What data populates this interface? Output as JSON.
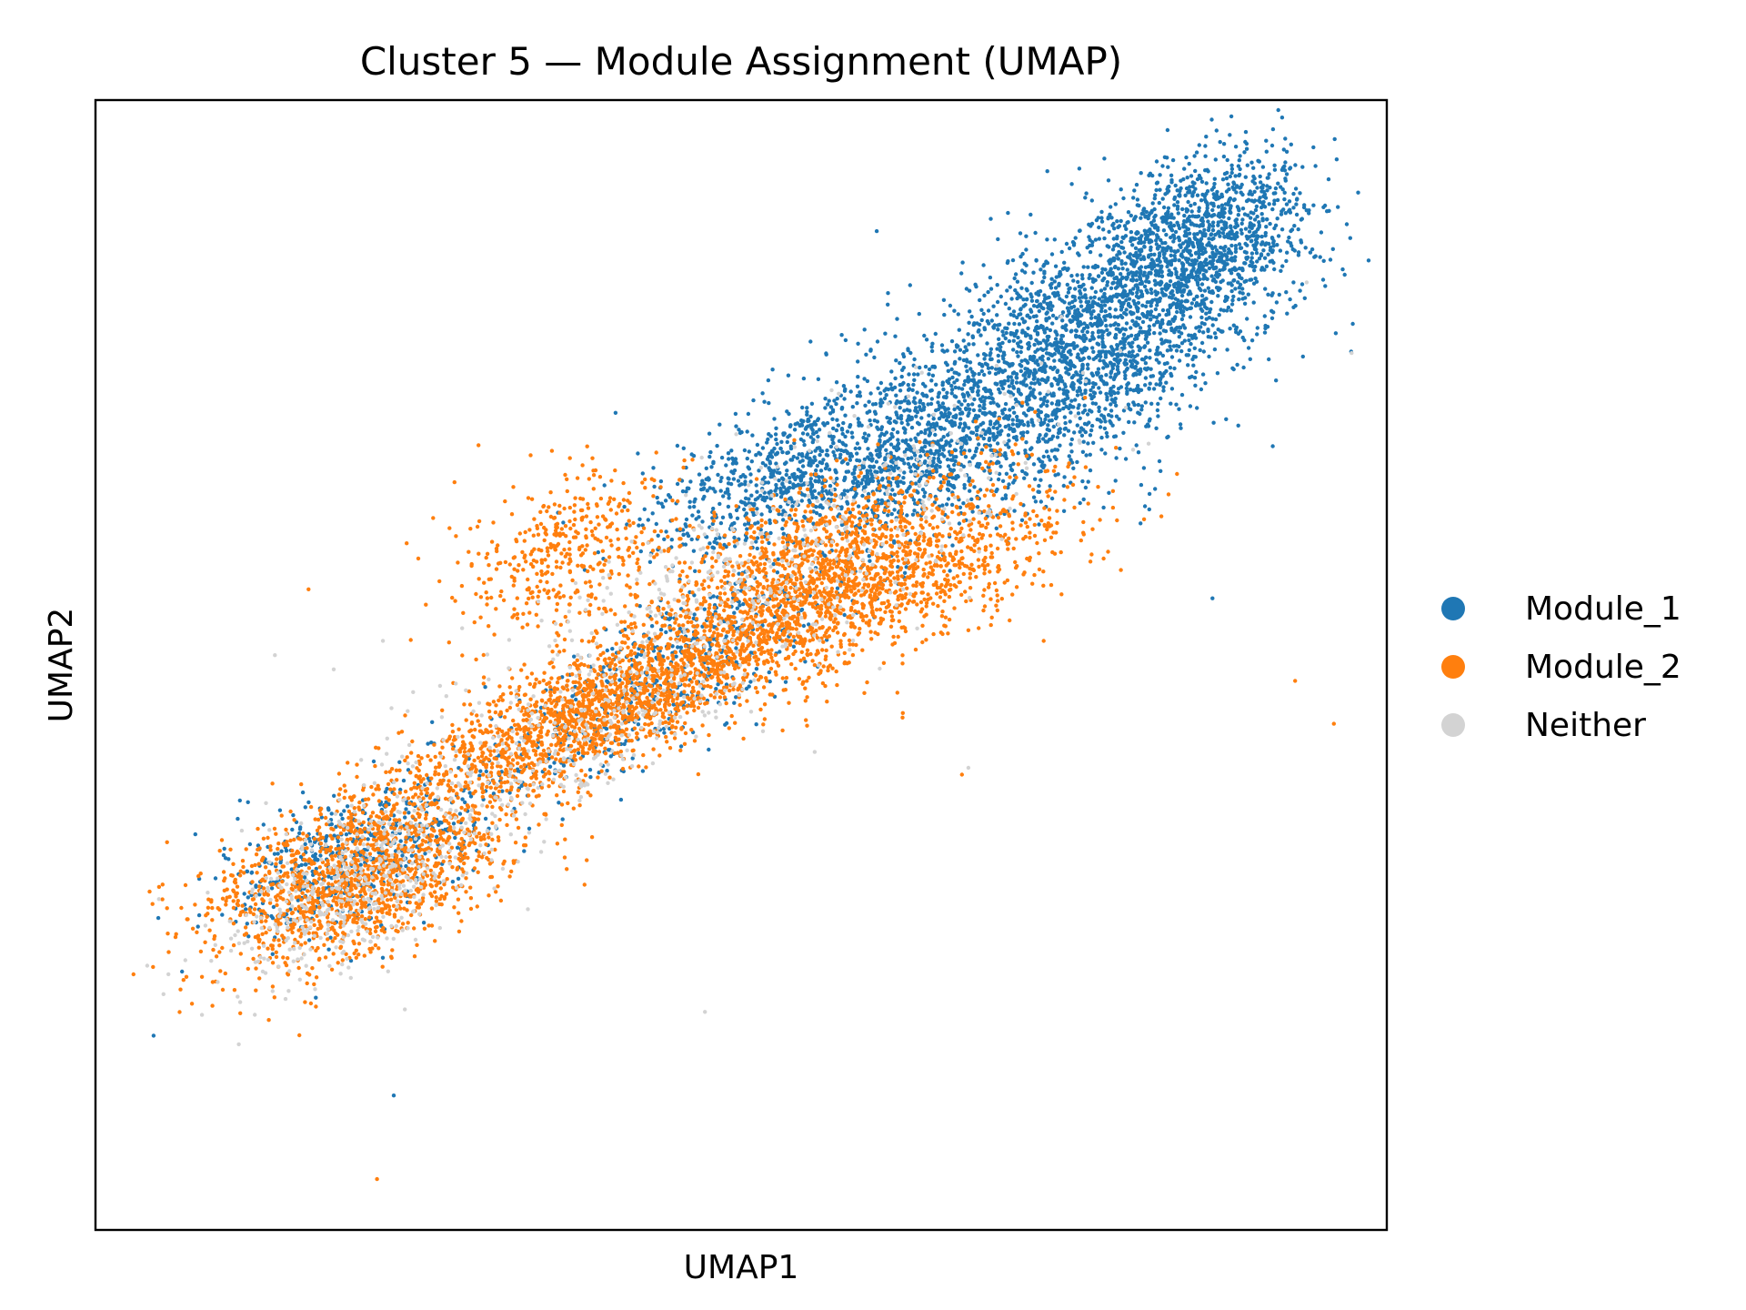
{
  "chart_data": {
    "type": "scatter",
    "title": "Cluster 5 — Module Assignment (UMAP)",
    "xlabel": "UMAP1",
    "ylabel": "UMAP2",
    "x_ticks": [],
    "y_ticks": [],
    "xlim": [
      0,
      100
    ],
    "ylim": [
      0,
      100
    ],
    "grid": false,
    "legend_position": "right",
    "series": [
      {
        "name": "Module_1",
        "color": "#1f77b4",
        "clusters": [
          {
            "cx": 77,
            "cy": 79,
            "sx": 7,
            "sy": 6,
            "rho": 0.5,
            "n": 2200
          },
          {
            "cx": 86,
            "cy": 88,
            "sx": 4,
            "sy": 3.5,
            "rho": 0.4,
            "n": 900
          },
          {
            "cx": 63,
            "cy": 69,
            "sx": 7,
            "sy": 4,
            "rho": 0.4,
            "n": 1100
          },
          {
            "cx": 52,
            "cy": 66,
            "sx": 5,
            "sy": 3.5,
            "rho": 0.5,
            "n": 450
          },
          {
            "cx": 45,
            "cy": 50,
            "sx": 8,
            "sy": 6,
            "rho": 0.85,
            "n": 600
          },
          {
            "cx": 20,
            "cy": 33,
            "sx": 5,
            "sy": 3.5,
            "rho": 0.5,
            "n": 500
          }
        ],
        "outliers": [
          [
            4.5,
            17.2
          ],
          [
            23.1,
            11.9
          ],
          [
            60.5,
            88.4
          ],
          [
            93.6,
            90.5
          ],
          [
            86.5,
            55.9
          ]
        ]
      },
      {
        "name": "Module_2",
        "color": "#ff7f0e",
        "clusters": [
          {
            "cx": 58,
            "cy": 58,
            "sx": 8,
            "sy": 4.5,
            "rho": 0.5,
            "n": 2000
          },
          {
            "cx": 39,
            "cy": 46,
            "sx": 8,
            "sy": 4.5,
            "rho": 0.8,
            "n": 1800
          },
          {
            "cx": 20,
            "cy": 31,
            "sx": 6,
            "sy": 4,
            "rho": 0.5,
            "n": 1400
          },
          {
            "cx": 36,
            "cy": 60,
            "sx": 4,
            "sy": 4,
            "rho": 0.3,
            "n": 400
          }
        ],
        "outliers": [
          [
            16.5,
            56.7
          ],
          [
            92.9,
            48.6
          ],
          [
            95.9,
            44.8
          ],
          [
            21.8,
            4.5
          ],
          [
            67.1,
            40.3
          ]
        ]
      },
      {
        "name": "Neither",
        "color": "#d3d3d3",
        "clusters": [
          {
            "cx": 52,
            "cy": 58,
            "sx": 12,
            "sy": 8,
            "rho": 0.8,
            "n": 500
          },
          {
            "cx": 20,
            "cy": 30,
            "sx": 5,
            "sy": 4,
            "rho": 0.5,
            "n": 400
          },
          {
            "cx": 35,
            "cy": 42,
            "sx": 8,
            "sy": 5,
            "rho": 0.8,
            "n": 250
          }
        ],
        "outliers": [
          [
            47.2,
            19.3
          ],
          [
            67.6,
            40.9
          ],
          [
            19.1,
            23.5
          ],
          [
            55.7,
            42.3
          ]
        ]
      }
    ]
  }
}
